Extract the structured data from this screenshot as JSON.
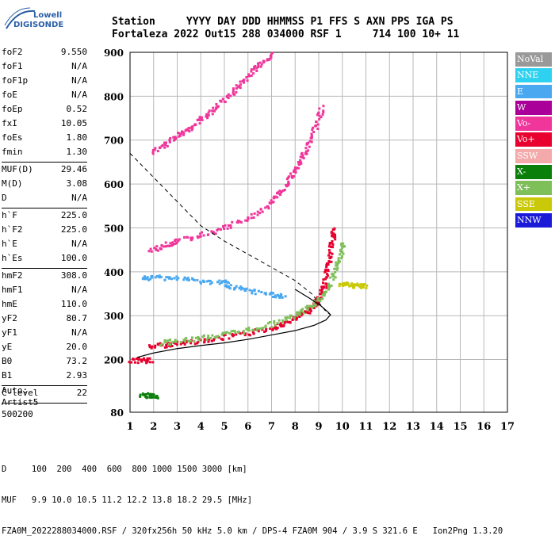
{
  "logo": {
    "line1": "Lowell",
    "line2": "DIGISONDE"
  },
  "header": {
    "labels": [
      "Station",
      "YYYY",
      "DAY",
      "DDD",
      "HHMMSS",
      "P1",
      "FFS",
      "S",
      "AXN",
      "PPS",
      "IGA",
      "PS"
    ],
    "values": [
      "Fortaleza",
      "2022",
      "Out15",
      "288",
      "034000",
      "RSF",
      "1",
      "714",
      "100",
      "10+",
      "11"
    ]
  },
  "parameters": {
    "group1": [
      {
        "name": "foF2",
        "value": "9.550"
      },
      {
        "name": "foF1",
        "value": "N/A"
      },
      {
        "name": "foF1p",
        "value": "N/A"
      },
      {
        "name": "foE",
        "value": "N/A"
      },
      {
        "name": "foEp",
        "value": "0.52"
      },
      {
        "name": "fxI",
        "value": "10.05"
      },
      {
        "name": "foEs",
        "value": "1.80"
      },
      {
        "name": "fmin",
        "value": "1.30"
      }
    ],
    "group2": [
      {
        "name": "MUF(D)",
        "value": "29.46"
      },
      {
        "name": "M(D)",
        "value": "3.08"
      },
      {
        "name": "D",
        "value": "N/A"
      }
    ],
    "group3": [
      {
        "name": "h`F",
        "value": "225.0"
      },
      {
        "name": "h`F2",
        "value": "225.0"
      },
      {
        "name": "h`E",
        "value": "N/A"
      },
      {
        "name": "h`Es",
        "value": "100.0"
      }
    ],
    "group4": [
      {
        "name": "hmF2",
        "value": "308.0"
      },
      {
        "name": "hmF1",
        "value": "N/A"
      },
      {
        "name": "hmE",
        "value": "110.0"
      },
      {
        "name": "yF2",
        "value": "80.7"
      },
      {
        "name": "yF1",
        "value": "N/A"
      },
      {
        "name": "yE",
        "value": "20.0"
      },
      {
        "name": "B0",
        "value": "73.2"
      },
      {
        "name": "B1",
        "value": "2.93"
      }
    ],
    "group5": [
      {
        "name": "C-level",
        "value": "22"
      }
    ]
  },
  "auto": {
    "line1": "Auto:",
    "line2": "Artist5",
    "line3": "500200"
  },
  "legend": [
    {
      "label": "NoVal",
      "color": "#999999"
    },
    {
      "label": "NNE",
      "color": "#2ed2f0"
    },
    {
      "label": "E",
      "color": "#4aa8f0"
    },
    {
      "label": "W",
      "color": "#aa0099"
    },
    {
      "label": "Vo-",
      "color": "#f0359b"
    },
    {
      "label": "Vo+",
      "color": "#e8002e"
    },
    {
      "label": "SSW",
      "color": "#f4aaaa"
    },
    {
      "label": "X-",
      "color": "#0a7f0a"
    },
    {
      "label": "X+",
      "color": "#7fbf5a"
    },
    {
      "label": "SSE",
      "color": "#c9c90a"
    },
    {
      "label": "NNW",
      "color": "#1a1ad8"
    }
  ],
  "footer": {
    "line1": "D     100  200  400  600  800 1000 1500 3000 [km]",
    "line2": "MUF   9.9 10.0 10.5 11.2 12.2 13.8 18.2 29.5 [MHz]",
    "line3": "FZA0M_2022288034000.RSF / 320fx256h 50 kHz 5.0 km / DPS-4 FZA0M 904 / 3.9 S 321.6 E   Ion2Png 1.3.20"
  },
  "chart_data": {
    "type": "scatter",
    "xlim": [
      1,
      17
    ],
    "ylim": [
      80,
      900
    ],
    "xticks": [
      1,
      2,
      3,
      4,
      5,
      6,
      7,
      8,
      9,
      10,
      11,
      12,
      13,
      14,
      15,
      16,
      17
    ],
    "yticks": [
      80,
      200,
      300,
      400,
      500,
      600,
      700,
      800,
      900
    ],
    "grid": true,
    "legend_position": "right",
    "profile_solid": [
      [
        1.3,
        205
      ],
      [
        2,
        215
      ],
      [
        3,
        225
      ],
      [
        4,
        232
      ],
      [
        5,
        238
      ],
      [
        6,
        246
      ],
      [
        7,
        256
      ],
      [
        8,
        266
      ],
      [
        8.8,
        278
      ],
      [
        9.3,
        290
      ],
      [
        9.5,
        302
      ],
      [
        9.4,
        308
      ],
      [
        9.1,
        322
      ],
      [
        8.6,
        340
      ],
      [
        8,
        360
      ]
    ],
    "profile_dashed": [
      [
        1,
        670
      ],
      [
        2,
        615
      ],
      [
        3,
        560
      ],
      [
        4,
        505
      ],
      [
        5,
        470
      ],
      [
        6,
        440
      ],
      [
        7,
        410
      ],
      [
        8,
        380
      ],
      [
        8.7,
        350
      ],
      [
        9.3,
        310
      ],
      [
        9.5,
        302
      ]
    ],
    "traces": [
      {
        "name": "Vo+",
        "points": [
          [
            1.8,
            232
          ],
          [
            2.5,
            236
          ],
          [
            3,
            239
          ],
          [
            4,
            246
          ],
          [
            5,
            253
          ],
          [
            6,
            262
          ],
          [
            7,
            275
          ],
          [
            7.5,
            285
          ],
          [
            8,
            296
          ],
          [
            8.5,
            313
          ],
          [
            8.8,
            328
          ],
          [
            9,
            345
          ],
          [
            9.2,
            372
          ],
          [
            9.35,
            410
          ],
          [
            9.45,
            440
          ],
          [
            9.55,
            480
          ],
          [
            9.6,
            500
          ]
        ]
      },
      {
        "name": "X+",
        "points": [
          [
            2.3,
            240
          ],
          [
            3,
            244
          ],
          [
            4,
            252
          ],
          [
            5,
            260
          ],
          [
            6,
            270
          ],
          [
            7,
            284
          ],
          [
            8,
            303
          ],
          [
            8.5,
            320
          ],
          [
            9,
            340
          ],
          [
            9.4,
            370
          ],
          [
            9.7,
            410
          ],
          [
            9.9,
            440
          ],
          [
            10,
            470
          ]
        ]
      },
      {
        "name": "Vo-",
        "points": [
          [
            1.8,
            450
          ],
          [
            2.5,
            464
          ],
          [
            3,
            473
          ],
          [
            4,
            486
          ],
          [
            5,
            503
          ],
          [
            6,
            525
          ],
          [
            6.8,
            552
          ],
          [
            7.3,
            580
          ],
          [
            7.7,
            610
          ],
          [
            8,
            640
          ],
          [
            8.3,
            668
          ],
          [
            8.6,
            700
          ],
          [
            8.9,
            740
          ],
          [
            9.1,
            780
          ]
        ]
      },
      {
        "name": "Vo+",
        "points": [
          [
            1,
            200
          ],
          [
            1.5,
            200
          ],
          [
            1.9,
            200
          ]
        ]
      },
      {
        "name": "E",
        "points": [
          [
            1.4,
            385
          ],
          [
            2,
            390
          ],
          [
            3,
            388
          ],
          [
            4,
            380
          ],
          [
            5,
            378
          ],
          [
            5.2,
            368
          ],
          [
            6,
            358
          ],
          [
            7,
            350
          ],
          [
            7.5,
            345
          ]
        ]
      },
      {
        "name": "Vo-",
        "points": [
          [
            1.9,
            675
          ],
          [
            2.5,
            695
          ],
          [
            3,
            712
          ],
          [
            3.5,
            730
          ],
          [
            4,
            752
          ],
          [
            4.5,
            770
          ],
          [
            5,
            798
          ],
          [
            5.5,
            820
          ],
          [
            6,
            850
          ],
          [
            6.5,
            875
          ],
          [
            7,
            900
          ]
        ]
      },
      {
        "name": "SSE",
        "points": [
          [
            9.9,
            375
          ],
          [
            10.3,
            372
          ],
          [
            10.6,
            370
          ],
          [
            11,
            368
          ]
        ]
      },
      {
        "name": "X-",
        "points": [
          [
            1.4,
            120
          ],
          [
            1.8,
            120
          ],
          [
            2.1,
            120
          ]
        ]
      }
    ]
  }
}
